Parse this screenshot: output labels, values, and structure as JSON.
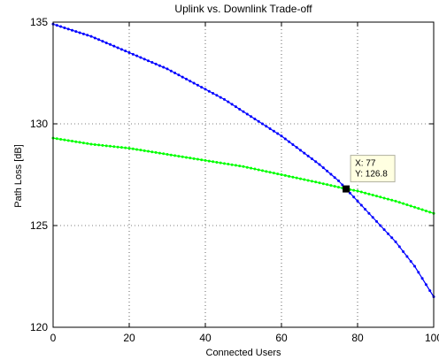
{
  "chart_data": {
    "type": "line",
    "title": "Uplink vs. Downlink Trade-off",
    "xlabel": "Connected Users",
    "ylabel": "Path Loss [dB]",
    "xlim": [
      0,
      100
    ],
    "ylim": [
      120,
      135
    ],
    "x_ticks": [
      "0",
      "20",
      "40",
      "60",
      "80",
      "100"
    ],
    "y_ticks": [
      "120",
      "125",
      "130",
      "135"
    ],
    "grid": true,
    "series": [
      {
        "color": "#0000ff",
        "marker": "dot",
        "x": [
          0,
          5,
          10,
          15,
          20,
          25,
          30,
          35,
          40,
          45,
          50,
          55,
          60,
          65,
          70,
          75,
          77,
          80,
          85,
          90,
          95,
          100
        ],
        "values": [
          134.9,
          134.6,
          134.3,
          133.9,
          133.5,
          133.1,
          132.7,
          132.2,
          131.7,
          131.2,
          130.6,
          130.0,
          129.4,
          128.7,
          128.0,
          127.2,
          126.8,
          126.2,
          125.2,
          124.2,
          123.0,
          121.5
        ]
      },
      {
        "color": "#00ff00",
        "marker": "dot",
        "x": [
          0,
          10,
          20,
          30,
          40,
          50,
          60,
          70,
          77,
          80,
          90,
          100
        ],
        "values": [
          129.3,
          129.0,
          128.8,
          128.5,
          128.2,
          127.9,
          127.5,
          127.1,
          126.8,
          126.7,
          126.2,
          125.6
        ]
      }
    ],
    "datatip": {
      "x": 77,
      "y": 126.8,
      "line1": "X: 77",
      "line2": "Y: 126.8"
    }
  }
}
